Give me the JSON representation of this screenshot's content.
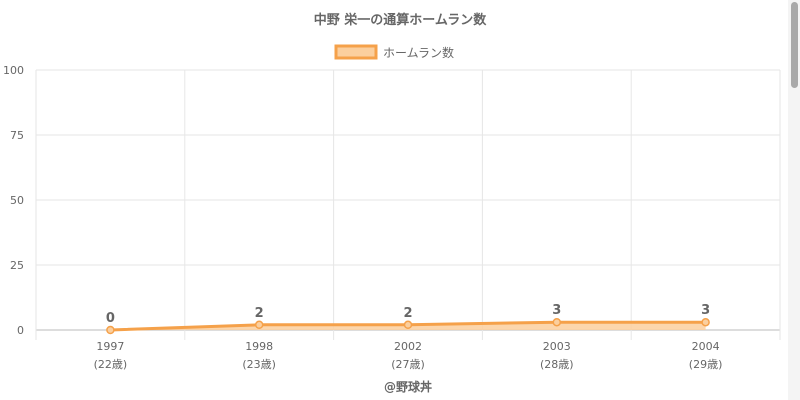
{
  "chart_data": {
    "type": "line",
    "title": "中野 栄一の通算ホームラン数",
    "legend_position": "top-center",
    "series": [
      {
        "name": "ホームラン数",
        "values": [
          0,
          2,
          2,
          3,
          3
        ]
      }
    ],
    "categories": [
      "1997",
      "1998",
      "2002",
      "2003",
      "2004"
    ],
    "category_sublabels": [
      "(22歳)",
      "(23歳)",
      "(27歳)",
      "(28歳)",
      "(29歳)"
    ],
    "y_ticks": [
      "0",
      "25",
      "50",
      "75",
      "100"
    ],
    "ylim": [
      0,
      100
    ],
    "data_labels": [
      "0",
      "2",
      "2",
      "3",
      "3"
    ],
    "grid": true,
    "fill": true
  },
  "footer": "@野球丼",
  "colors": {
    "line": "#f5a14a",
    "fill": "#fbcf9e",
    "grid": "#e6e6e6",
    "text": "#666666"
  }
}
